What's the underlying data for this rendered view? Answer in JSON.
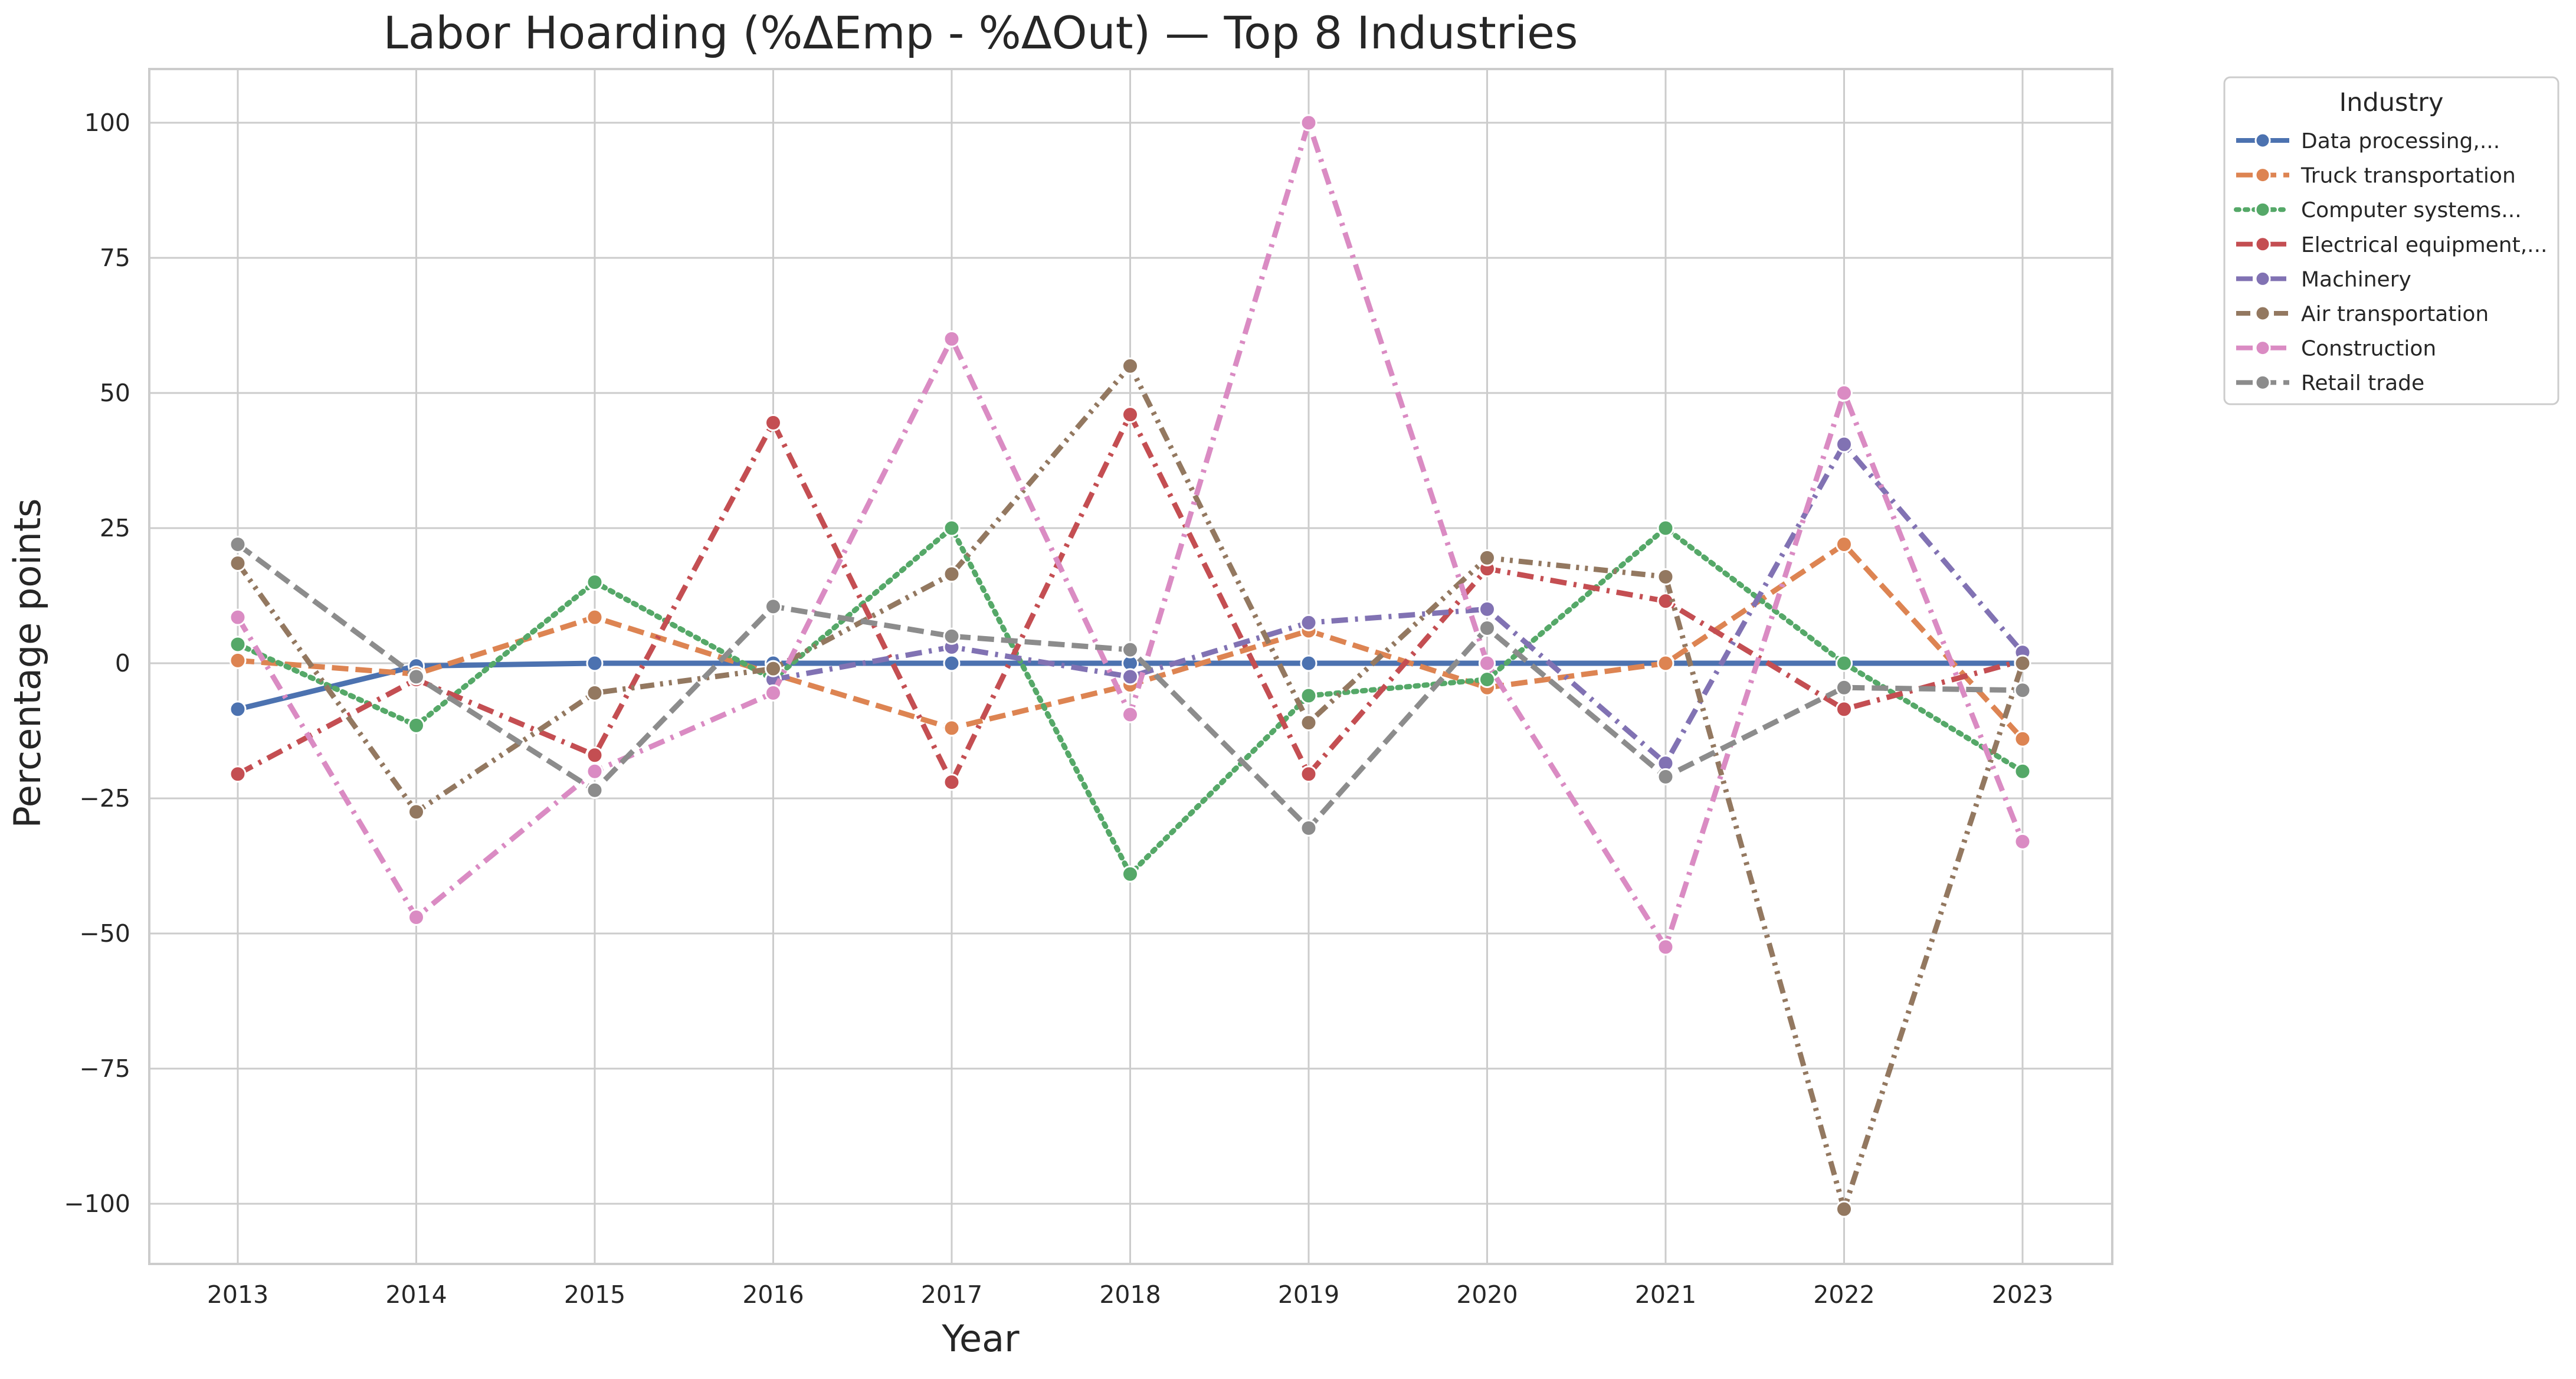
{
  "chart_data": {
    "type": "line",
    "title": "Labor Hoarding (%ΔEmp - %ΔOut) — Top 8 Industries",
    "xlabel": "Year",
    "ylabel": "Percentage points",
    "x": [
      2013,
      2014,
      2015,
      2016,
      2017,
      2018,
      2019,
      2020,
      2021,
      2022,
      2023
    ],
    "ylim": [
      -111,
      110
    ],
    "yticks": [
      100,
      75,
      50,
      25,
      0,
      -25,
      -50,
      -75,
      -100
    ],
    "ytick_labels": [
      "100",
      "75",
      "50",
      "25",
      "0",
      "−25",
      "−50",
      "−75",
      "−100"
    ],
    "grid": true,
    "legend": {
      "title": "Industry",
      "placement": "outside top-right"
    },
    "series": [
      {
        "name": "Data processing,...",
        "color": "#4c72b0",
        "dash": "solid",
        "values": [
          -8.5,
          -0.5,
          0,
          0,
          0,
          0,
          0,
          0,
          0,
          0,
          0
        ]
      },
      {
        "name": "Truck transportation",
        "color": "#dd8452",
        "dash": "dashed",
        "values": [
          0.5,
          -2,
          8.5,
          -2,
          -12,
          -4,
          6,
          -4.5,
          0,
          22,
          -14
        ]
      },
      {
        "name": "Computer systems...",
        "color": "#55a868",
        "dash": "dotted",
        "values": [
          3.5,
          -11.5,
          15,
          -3,
          25,
          -39,
          -6,
          -3,
          25,
          0,
          -20
        ]
      },
      {
        "name": "Electrical equipment,...",
        "color": "#c44e52",
        "dash": "dashdot",
        "values": [
          -20.5,
          -3,
          -17,
          44.5,
          -22,
          46,
          -20.5,
          17.5,
          11.5,
          -8.5,
          0.5
        ]
      },
      {
        "name": "Machinery",
        "color": "#8172b3",
        "dash": "dashdot",
        "values": [
          null,
          null,
          null,
          -3,
          3,
          -2.5,
          7.5,
          10,
          -18.5,
          40.5,
          2
        ]
      },
      {
        "name": "Air transportation",
        "color": "#937860",
        "dash": "dashdotdot",
        "values": [
          18.5,
          -27.5,
          -5.5,
          -1,
          16.5,
          55,
          -11,
          19.5,
          16,
          -101,
          0
        ]
      },
      {
        "name": "Construction",
        "color": "#da8bc3",
        "dash": "dashdot",
        "values": [
          8.5,
          -47,
          -20,
          -5.5,
          60,
          -9.5,
          100,
          0,
          -52.5,
          50,
          -33
        ]
      },
      {
        "name": "Retail trade",
        "color": "#8c8c8c",
        "dash": "dashed",
        "values": [
          22,
          -2.5,
          -23.5,
          10.5,
          5,
          2.5,
          -30.5,
          6.5,
          -21,
          -4.5,
          -5
        ]
      }
    ]
  }
}
